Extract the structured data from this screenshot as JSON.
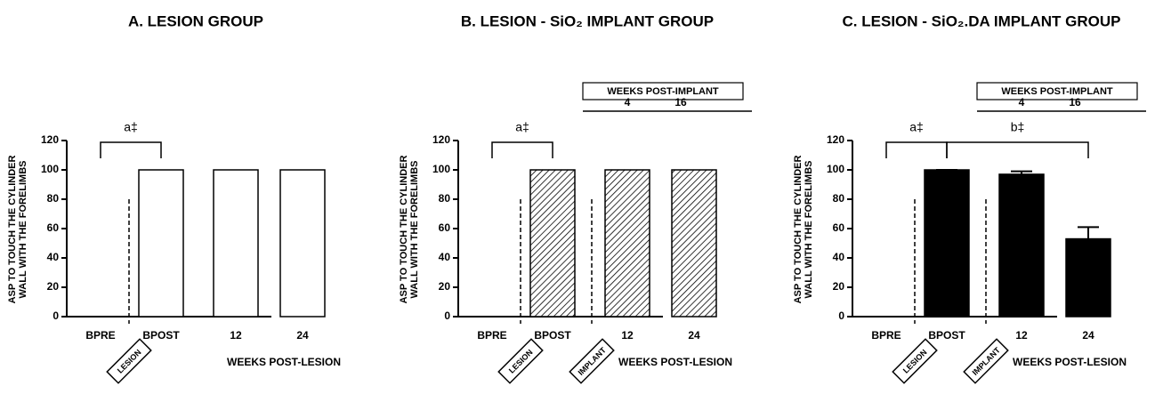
{
  "chart_data": [
    {
      "type": "bar",
      "title": "A. LESION GROUP",
      "y_label": [
        "ASP TO TOUCH THE CYLINDER",
        "WALL WITH THE FORELIMBS"
      ],
      "x_label": "WEEKS POST-LESION",
      "categories": [
        "BPRE",
        "BPOST",
        "12",
        "24"
      ],
      "values": [
        0,
        100,
        100,
        100
      ],
      "color": "#ffffff",
      "ylim": [
        0,
        120
      ],
      "yticks": [
        0,
        20,
        40,
        60,
        80,
        100,
        120
      ],
      "markers": [
        "LESION"
      ],
      "annotations": [
        "a‡"
      ]
    },
    {
      "type": "bar",
      "title": "B. LESION - SiO₂ IMPLANT GROUP",
      "y_label": [
        "ASP TO TOUCH THE CYLINDER",
        "WALL WITH THE FORELIMBS"
      ],
      "x_label": "WEEKS POST-LESION",
      "categories": [
        "BPRE",
        "BPOST",
        "12",
        "24"
      ],
      "values": [
        0,
        100,
        100,
        100
      ],
      "color": "#ffffff",
      "pattern": "hatch",
      "ylim": [
        0,
        120
      ],
      "yticks": [
        0,
        20,
        40,
        60,
        80,
        100,
        120
      ],
      "markers": [
        "LESION",
        "IMPLANT"
      ],
      "annotations": [
        "a‡"
      ],
      "inset": {
        "title": "WEEKS POST-IMPLANT",
        "labels": [
          "4",
          "16"
        ]
      }
    },
    {
      "type": "bar",
      "title": "C. LESION - SiO₂.DA IMPLANT GROUP",
      "y_label": [
        "ASP TO TOUCH THE CYLINDER",
        "WALL WITH THE FORELIMBS"
      ],
      "x_label": "WEEKS POST-LESION",
      "categories": [
        "BPRE",
        "BPOST",
        "12",
        "24"
      ],
      "values": [
        0,
        100,
        97,
        53
      ],
      "errors": [
        0,
        0,
        2,
        8
      ],
      "color": "#000000",
      "ylim": [
        0,
        120
      ],
      "yticks": [
        0,
        20,
        40,
        60,
        80,
        100,
        120
      ],
      "markers": [
        "LESION",
        "IMPLANT"
      ],
      "annotations": [
        "a‡",
        "b‡"
      ],
      "inset": {
        "title": "WEEKS POST-IMPLANT",
        "labels": [
          "4",
          "16"
        ]
      }
    }
  ]
}
